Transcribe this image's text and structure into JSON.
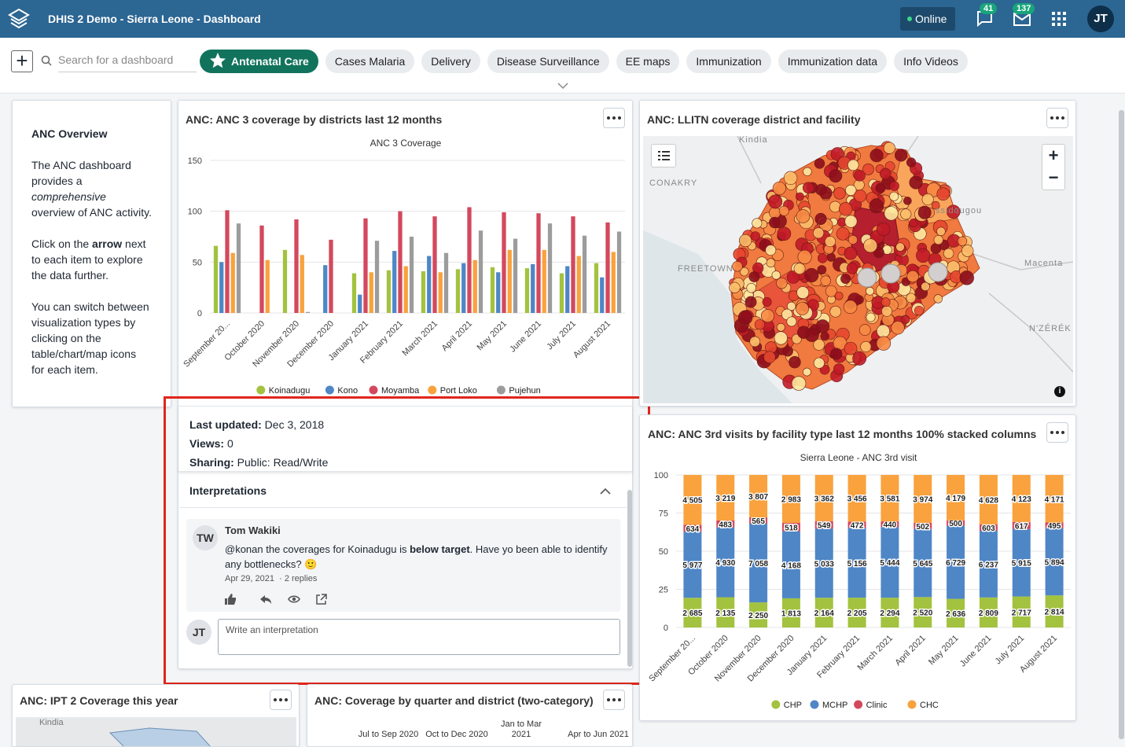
{
  "header": {
    "title": "DHIS 2 Demo - Sierra Leone - Dashboard",
    "status": "Online",
    "interpretations_count": 41,
    "messages_count": 137,
    "user_initials": "JT"
  },
  "toolbar": {
    "search_placeholder": "Search for a dashboard",
    "active_dashboard": 0,
    "dashboards": [
      "Antenatal Care",
      "Cases Malaria",
      "Delivery",
      "Disease Surveillance",
      "EE maps",
      "Immunization",
      "Immunization data",
      "Info Videos"
    ]
  },
  "overview": {
    "title": "ANC Overview",
    "paragraphs": [
      [
        {
          "text": "The ANC dashboard provides a "
        },
        {
          "text": "comprehensive",
          "style": "italic"
        },
        {
          "text": " overview of ANC activity."
        }
      ],
      [
        {
          "text": "Click on the "
        },
        {
          "text": "arrow",
          "style": "bold"
        },
        {
          "text": " next to each item to explore the data further."
        }
      ],
      [
        {
          "text": "You can switch between visualization types by clicking on the table/chart/map icons for each item."
        }
      ]
    ]
  },
  "anc3": {
    "title": "ANC: ANC 3 coverage by districts last 12 months",
    "chart_data": {
      "type": "bar",
      "title": "ANC 3 Coverage",
      "categories": [
        "September 20...",
        "October 2020",
        "November 2020",
        "December 2020",
        "January 2021",
        "February 2021",
        "March 2021",
        "April 2021",
        "May 2021",
        "June 2021",
        "July 2021",
        "August 2021"
      ],
      "series": [
        {
          "name": "Koinadugu",
          "color": "#a3c23f",
          "values": [
            66,
            null,
            62,
            null,
            39,
            42,
            41,
            43,
            45,
            44,
            39,
            49
          ]
        },
        {
          "name": "Kono",
          "color": "#4f86c6",
          "values": [
            50,
            null,
            null,
            47,
            18,
            61,
            56,
            49,
            40,
            48,
            46,
            35
          ]
        },
        {
          "name": "Moyamba",
          "color": "#d3485d",
          "values": [
            101,
            86,
            92,
            72,
            93,
            100,
            95,
            104,
            99,
            98,
            95,
            89
          ]
        },
        {
          "name": "Port Loko",
          "color": "#f9a23e",
          "values": [
            59,
            52,
            57,
            null,
            40,
            46,
            40,
            52,
            62,
            62,
            56,
            60
          ]
        },
        {
          "name": "Pujehun",
          "color": "#9c9c9c",
          "values": [
            88,
            null,
            1,
            null,
            71,
            75,
            59,
            81,
            73,
            88,
            76,
            80
          ]
        }
      ],
      "ylim": [
        0,
        150
      ],
      "yticks": [
        0,
        50,
        100,
        150
      ],
      "grid": true,
      "legend": "bottom"
    },
    "info": {
      "updated_label": "Last updated:",
      "updated": "Dec 3, 2018",
      "views_label": "Views:",
      "views": 0,
      "sharing_label": "Sharing:",
      "sharing": "Public: Read/Write"
    },
    "interpretations": {
      "title": "Interpretations",
      "items": [
        {
          "initials": "TW",
          "author": "Tom Wakiki",
          "text": [
            {
              "text": "@konan the coverages for Koinadugu is "
            },
            {
              "text": "below target",
              "style": "bold"
            },
            {
              "text": ". Have yo been able to identify any bottlenecks? 🙂"
            }
          ],
          "date": "Apr 29, 2021",
          "replies": "2 replies"
        }
      ],
      "input_initials": "JT",
      "input_placeholder": "Write an interpretation"
    }
  },
  "llitn": {
    "title": "ANC: LLITN coverage district and facility",
    "map_labels": [
      "Kindia",
      "CONAKRY",
      "FREETOWN",
      "ssidougou",
      "Macenta",
      "N'ZÉRÉK"
    ]
  },
  "anc3rd": {
    "title": "ANC: ANC 3rd visits by facility type last 12 months 100% stacked columns",
    "chart_data": {
      "type": "bar",
      "stacking": "percent",
      "title": "Sierra Leone - ANC 3rd visit",
      "categories": [
        "September 20...",
        "October 2020",
        "November 2020",
        "December 2020",
        "January 2021",
        "February 2021",
        "March 2021",
        "April 2021",
        "May 2021",
        "June 2021",
        "July 2021",
        "August 2021"
      ],
      "series": [
        {
          "name": "CHP",
          "color": "#a3c23f",
          "values": [
            2685,
            2135,
            2250,
            1813,
            2164,
            2205,
            2294,
            2520,
            2636,
            2809,
            2717,
            2814
          ],
          "value_labels": [
            "2 685",
            "2 135",
            "2 250",
            "1 813",
            "2 164",
            "2 205",
            "2 294",
            "2 520",
            "2 636",
            "2 809",
            "2 717",
            "2 814"
          ]
        },
        {
          "name": "MCHP",
          "color": "#4f86c6",
          "values": [
            5977,
            4930,
            7058,
            4168,
            5033,
            5156,
            5444,
            5645,
            6729,
            6237,
            5915,
            5894
          ],
          "value_labels": [
            "5 977",
            "4 930",
            "7 058",
            "4 168",
            "5 033",
            "5 156",
            "5 444",
            "5 645",
            "6 729",
            "6 237",
            "5 915",
            "5 894"
          ]
        },
        {
          "name": "Clinic",
          "color": "#d3485d",
          "values": [
            634,
            483,
            565,
            518,
            549,
            472,
            440,
            502,
            500,
            603,
            617,
            495
          ],
          "value_labels": [
            "634",
            "483",
            "565",
            "518",
            "549",
            "472",
            "440",
            "502",
            "500",
            "603",
            "617",
            "495"
          ]
        },
        {
          "name": "CHC",
          "color": "#f9a23e",
          "values": [
            4505,
            3219,
            3807,
            2983,
            3362,
            3456,
            3581,
            3974,
            4179,
            4628,
            4123,
            4171
          ],
          "value_labels": [
            "4 505",
            "3 219",
            "3 807",
            "2 983",
            "3 362",
            "3 456",
            "3 581",
            "3 974",
            "4 179",
            "4 628",
            "4 123",
            "4 171"
          ]
        }
      ],
      "ylim": [
        0,
        100
      ],
      "yticks": [
        0,
        25,
        50,
        75,
        100
      ],
      "grid": true,
      "legend": "bottom"
    }
  },
  "ipt2": {
    "title": "ANC: IPT 2 Coverage this year",
    "map_labels": [
      "Kindia"
    ]
  },
  "quarter": {
    "title": "ANC: Coverage by quarter and district (two-category)",
    "columns": [
      "Jul to Sep 2020",
      "Oct to Dec 2020",
      "Jan to Mar 2021",
      "Apr to Jun 2021"
    ]
  }
}
